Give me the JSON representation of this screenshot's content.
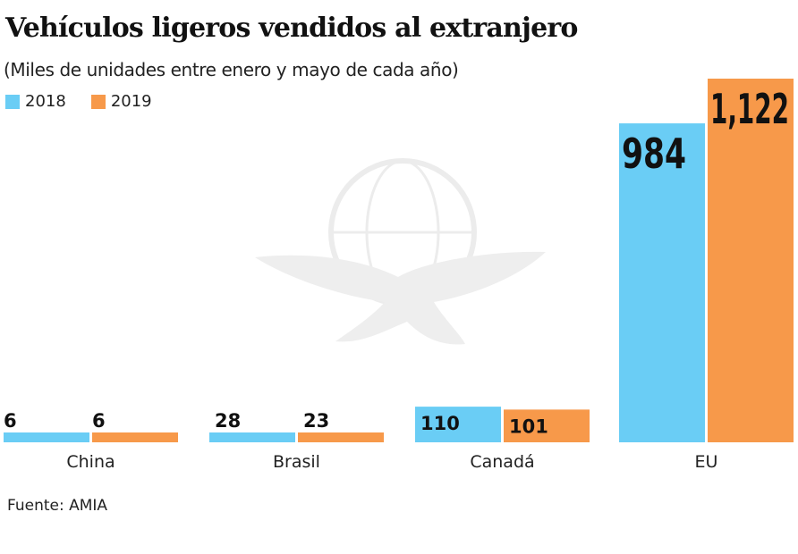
{
  "chart_data": {
    "type": "bar",
    "title": "Vehículos ligeros vendidos al extranjero",
    "subtitle": "(Miles de unidades entre enero y mayo de cada año)",
    "xlabel": "",
    "ylabel": "",
    "categories": [
      "China",
      "Brasil",
      "Canadá",
      "EU"
    ],
    "series": [
      {
        "name": "2018",
        "color": "#6acdf5",
        "values": [
          6,
          28,
          110,
          984
        ],
        "labels": [
          "6",
          "28",
          "110",
          "984"
        ]
      },
      {
        "name": "2019",
        "color": "#f7994a",
        "values": [
          6,
          23,
          101,
          1122
        ],
        "labels": [
          "6",
          "23",
          "101",
          "1,122"
        ]
      }
    ],
    "ylim": [
      0,
      1122
    ],
    "grid": false,
    "legend_position": "top-left",
    "source": "Fuente: AMIA"
  },
  "watermark": {
    "icon": "eagle-globe-icon"
  }
}
